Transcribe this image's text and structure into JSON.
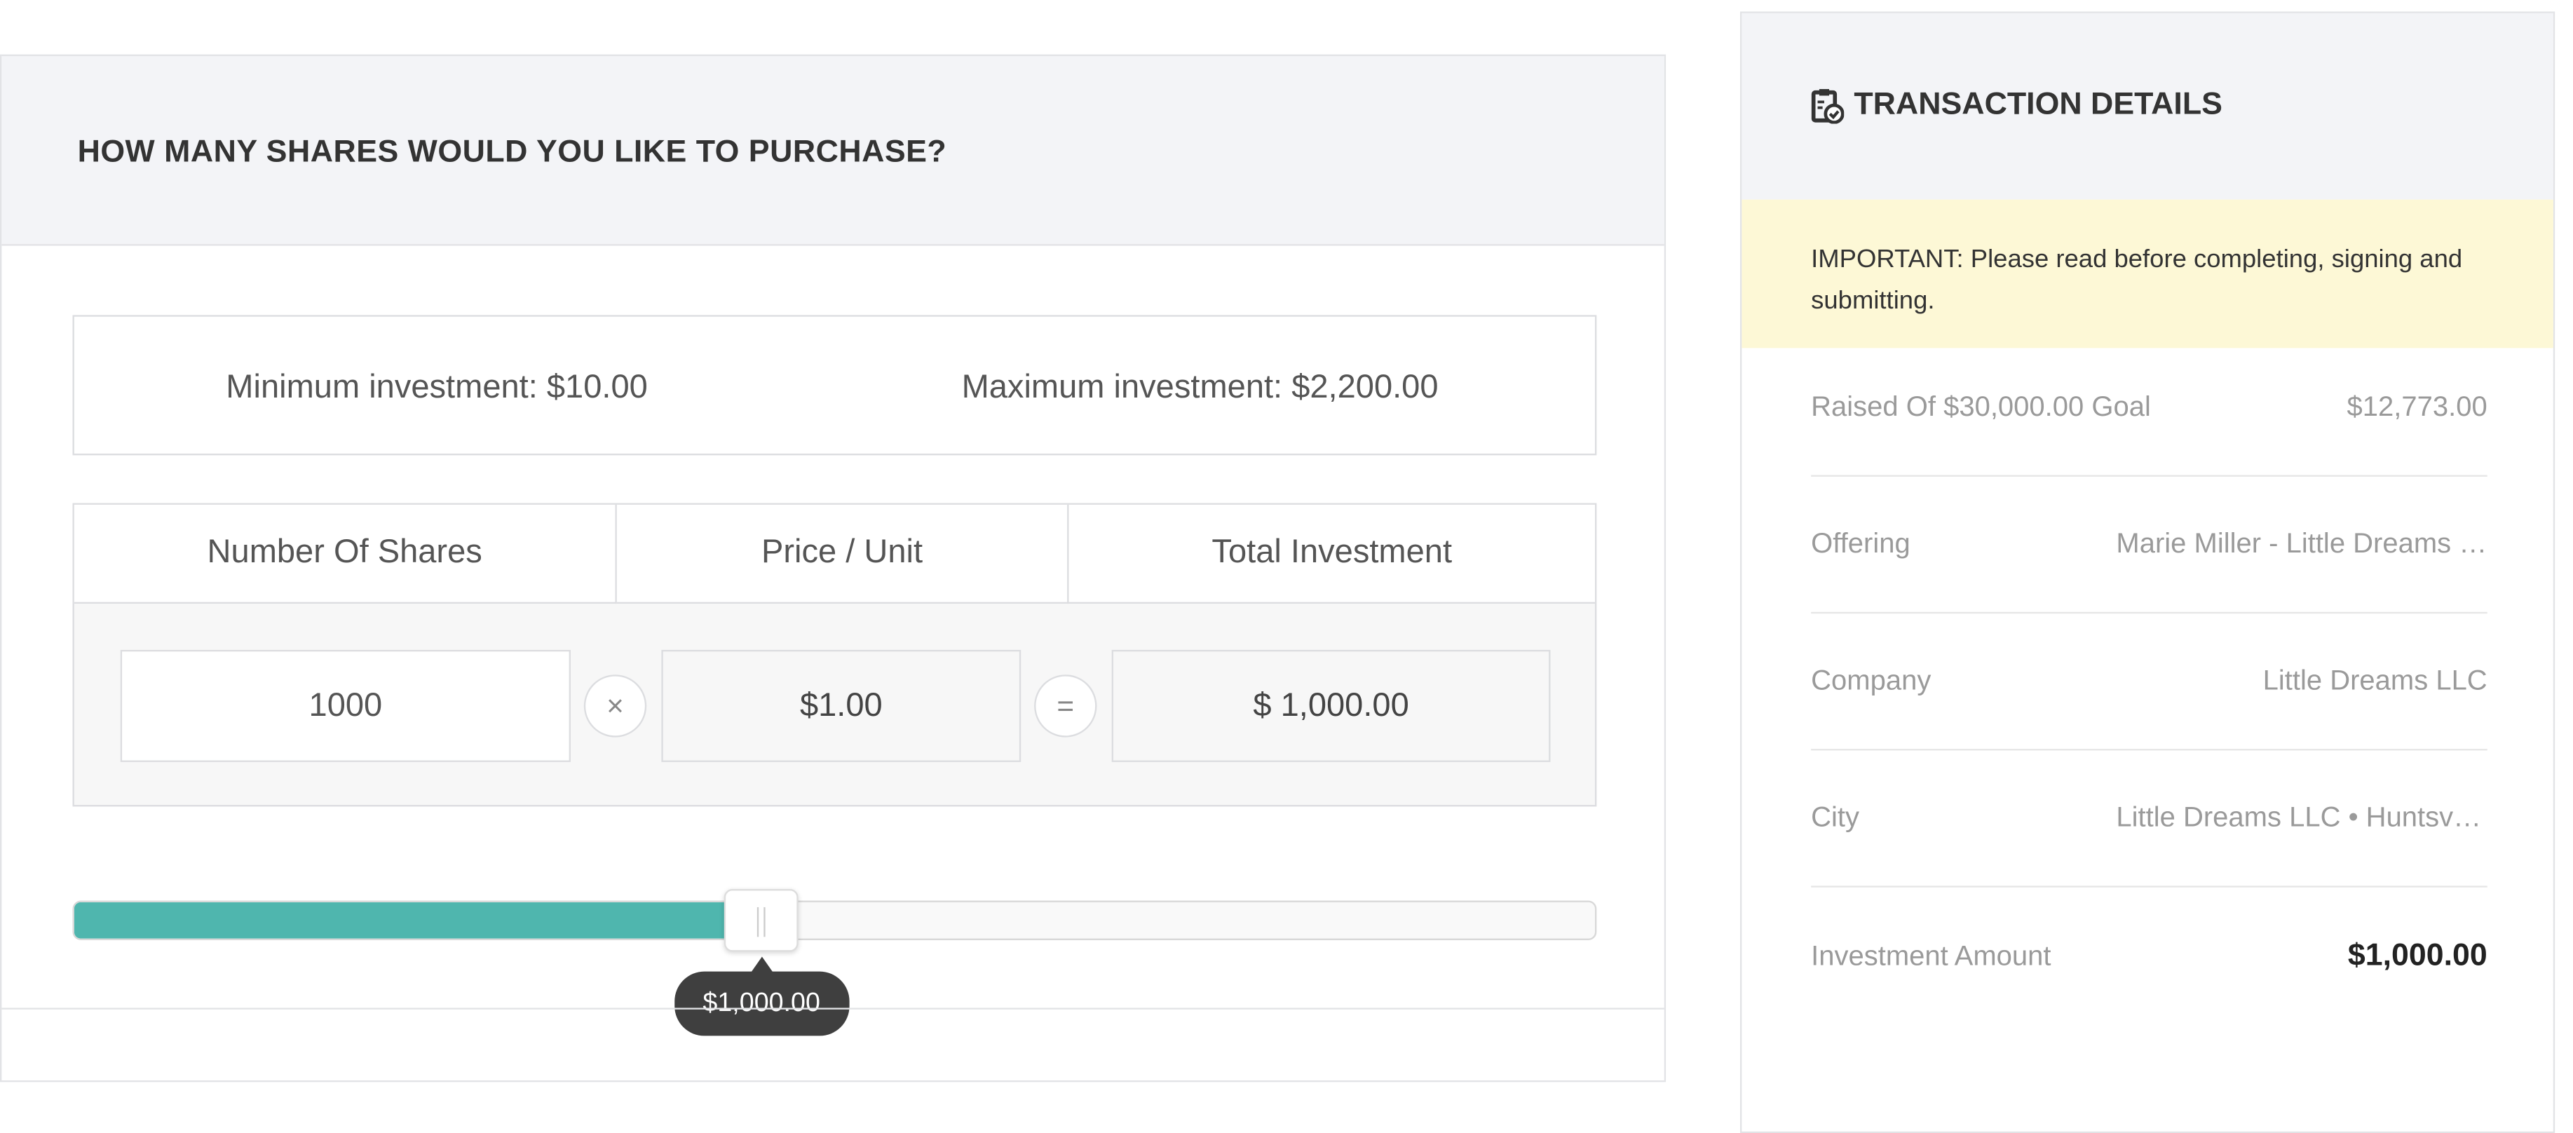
{
  "purchase": {
    "title": "HOW MANY SHARES WOULD YOU LIKE TO PURCHASE?",
    "min_investment": "Minimum investment: $10.00",
    "max_investment": "Maximum investment: $2,200.00",
    "columns": [
      "Number Of Shares",
      "Price / Unit",
      "Total Investment"
    ],
    "shares_value": "1000",
    "multiply_symbol": "×",
    "price": "$1.00",
    "equals_symbol": "=",
    "total": "$ 1,000.00",
    "slider": {
      "min": 10,
      "max": 2200,
      "value": 1000,
      "tooltip": "$1,000.00",
      "fill_color": "#4fb6ae"
    }
  },
  "details": {
    "title": "TRANSACTION DETAILS",
    "icon": "clipboard-check-icon",
    "notice": "IMPORTANT: Please read before completing, signing and submitting.",
    "rows": [
      {
        "label": "Raised Of $30,000.00 Goal",
        "value": "$12,773.00"
      },
      {
        "label": "Offering",
        "value": "Marie Miller - Little Dreams LLC"
      },
      {
        "label": "Company",
        "value": "Little Dreams LLC"
      },
      {
        "label": "City",
        "value": "Little Dreams LLC • Huntsville"
      },
      {
        "label": "Investment Amount",
        "value": "$1,000.00"
      }
    ]
  }
}
